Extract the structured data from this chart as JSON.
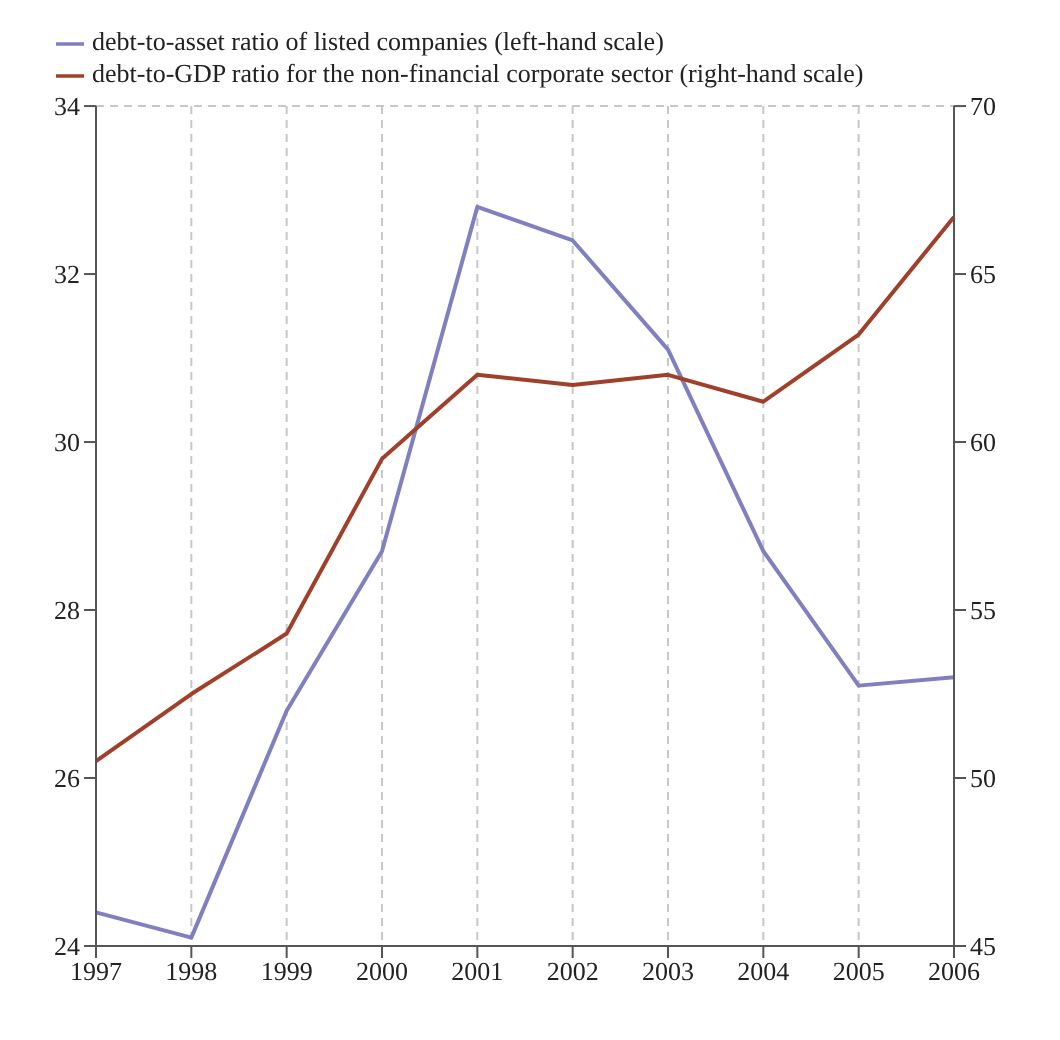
{
  "chart_data": {
    "type": "line",
    "categories": [
      "1997",
      "1998",
      "1999",
      "2000",
      "2001",
      "2002",
      "2003",
      "2004",
      "2005",
      "2006"
    ],
    "series": [
      {
        "name": "debt-to-asset ratio of listed companies (left-hand scale)",
        "color": "#8080c0",
        "values": [
          24.4,
          24.1,
          26.8,
          28.7,
          32.8,
          32.4,
          31.1,
          28.7,
          27.1,
          27.2
        ]
      },
      {
        "name": "debt-to-GDP ratio for the non-financial corporate sector (right-hand scale)",
        "color": "#a0402a",
        "axis": "y2",
        "values": [
          50.5,
          52.5,
          54.3,
          59.5,
          62,
          61.7,
          62,
          61.2,
          63.2,
          66.7
        ]
      }
    ],
    "ylim": [
      24,
      34
    ],
    "yticks": [
      24,
      26,
      28,
      30,
      32,
      34
    ],
    "y2lim": [
      45,
      70
    ],
    "y2ticks": [
      45,
      50,
      55,
      60,
      65,
      70
    ],
    "grid": true,
    "legend": "top left",
    "marker": "none",
    "line_style": "solid"
  }
}
